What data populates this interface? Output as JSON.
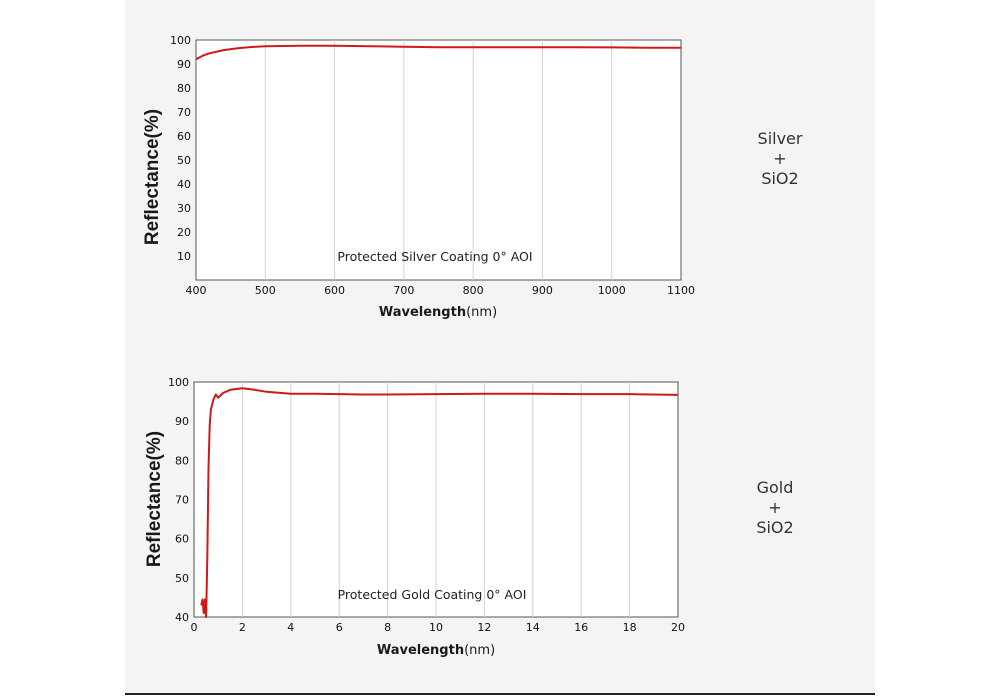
{
  "chart_data": [
    {
      "type": "line",
      "annotation": "Protected Silver Coating  0°  AOI",
      "xlabel": "Wavelength",
      "xunit": "(nm)",
      "ylabel": "Reflectance(%)",
      "xlim": [
        400,
        1100
      ],
      "ylim": [
        0,
        100
      ],
      "xticks": [
        400,
        500,
        600,
        700,
        800,
        900,
        1000,
        1100
      ],
      "yticks": [
        10,
        20,
        30,
        40,
        50,
        60,
        70,
        80,
        90,
        100
      ],
      "side_label": [
        "Silver",
        "+",
        "SiO2"
      ],
      "color": "#d01818",
      "series": [
        {
          "x": [
            400,
            410,
            420,
            440,
            460,
            480,
            500,
            550,
            600,
            650,
            700,
            750,
            800,
            850,
            900,
            950,
            1000,
            1050,
            1100
          ],
          "y": [
            92.0,
            93.5,
            94.5,
            95.8,
            96.6,
            97.1,
            97.4,
            97.6,
            97.6,
            97.4,
            97.2,
            97.0,
            97.0,
            97.0,
            97.0,
            97.0,
            96.9,
            96.8,
            96.8
          ]
        }
      ]
    },
    {
      "type": "line",
      "annotation": "Protected Gold Coating  0°  AOI",
      "xlabel": "Wavelength",
      "xunit": "(nm)",
      "ylabel": "Reflectance(%)",
      "xlim": [
        0,
        20
      ],
      "ylim": [
        40,
        100
      ],
      "xticks": [
        0,
        2,
        4,
        6,
        8,
        10,
        12,
        14,
        16,
        18,
        20
      ],
      "xticklabels": [
        "0",
        "2",
        "4",
        "6",
        "8",
        "10",
        "12",
        "14",
        "16",
        "18",
        "20"
      ],
      "yticks": [
        40,
        50,
        60,
        70,
        80,
        90,
        100
      ],
      "side_label": [
        "Gold",
        "+",
        "SiO2"
      ],
      "color": "#d01818",
      "series": [
        {
          "x": [
            0.3,
            0.35,
            0.4,
            0.45,
            0.5,
            0.55,
            0.6,
            0.65,
            0.7,
            0.8,
            0.9,
            1.0,
            1.2,
            1.5,
            2.0,
            2.5,
            3.0,
            4.0,
            5.0,
            6.0,
            7.0,
            8.0,
            10.0,
            12.0,
            14.0,
            16.0,
            18.0,
            20.0
          ],
          "y": [
            43.0,
            44.5,
            41.0,
            44.5,
            40.0,
            55.0,
            78.0,
            89.0,
            93.0,
            95.5,
            96.8,
            96.0,
            97.2,
            98.0,
            98.4,
            98.0,
            97.5,
            97.0,
            97.0,
            96.9,
            96.8,
            96.8,
            96.9,
            97.0,
            97.0,
            96.9,
            96.9,
            96.7
          ]
        }
      ]
    }
  ]
}
